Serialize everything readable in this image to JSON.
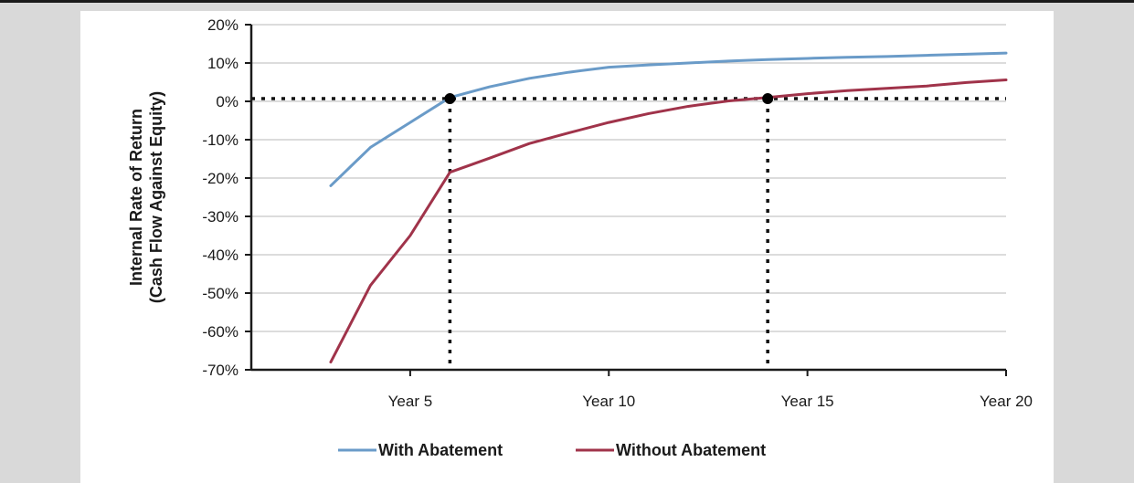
{
  "chart_data": {
    "type": "line",
    "x": [
      3,
      4,
      5,
      6,
      7,
      8,
      9,
      10,
      11,
      12,
      13,
      14,
      15,
      16,
      17,
      18,
      19,
      20
    ],
    "xlim": [
      1,
      20
    ],
    "x_ticks": [
      {
        "value": 5,
        "label": "Year 5"
      },
      {
        "value": 10,
        "label": "Year 10"
      },
      {
        "value": 15,
        "label": "Year 15"
      },
      {
        "value": 20,
        "label": "Year 20"
      }
    ],
    "ylim": [
      -70,
      20
    ],
    "y_ticks": [
      {
        "value": 20,
        "label": "20%"
      },
      {
        "value": 10,
        "label": "10%"
      },
      {
        "value": 0,
        "label": "0%"
      },
      {
        "value": -10,
        "label": "-10%"
      },
      {
        "value": -20,
        "label": "-20%"
      },
      {
        "value": -30,
        "label": "-30%"
      },
      {
        "value": -40,
        "label": "-40%"
      },
      {
        "value": -50,
        "label": "-50%"
      },
      {
        "value": -60,
        "label": "-60%"
      },
      {
        "value": -70,
        "label": "-70%"
      }
    ],
    "ylabel_line1": "Internal Rate of Return",
    "ylabel_line2": "(Cash Flow Against Equity)",
    "xlabel": "",
    "grid": true,
    "legend_position": "bottom",
    "series": [
      {
        "name": "With Abatement",
        "color": "#6a9bc8",
        "values": [
          -22,
          -12,
          -5.5,
          1,
          3.8,
          6,
          7.6,
          8.9,
          9.5,
          10,
          10.5,
          10.9,
          11.2,
          11.5,
          11.7,
          12,
          12.3,
          12.6
        ]
      },
      {
        "name": "Without Abatement",
        "color": "#a0334a",
        "values": [
          -68,
          -48,
          -35,
          -18.5,
          -14.8,
          -11,
          -8.2,
          -5.5,
          -3.2,
          -1.3,
          0.1,
          1,
          2,
          2.8,
          3.4,
          4,
          4.9,
          5.6
        ]
      }
    ],
    "reference_lines": {
      "horizontal_y": 0.7,
      "markers": [
        {
          "x": 6,
          "y": 0.7
        },
        {
          "x": 14,
          "y": 0.7
        }
      ],
      "style": "dotted"
    }
  }
}
